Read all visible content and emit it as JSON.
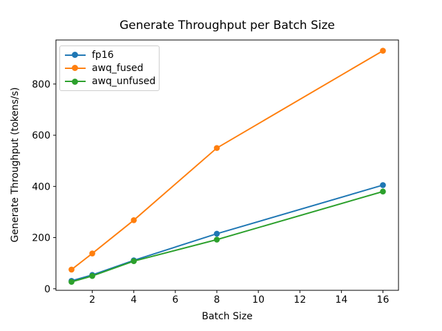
{
  "figure": {
    "background": "#ffffff",
    "text_color": "#000000",
    "spine_color": "#000000",
    "legend_border_color": "#cccccc"
  },
  "chart_data": {
    "type": "line",
    "title": "Generate Throughput per Batch Size",
    "xlabel": "Batch Size",
    "ylabel": "Generate Throughput (tokens/s)",
    "x": [
      1,
      2,
      4,
      8,
      16
    ],
    "series": [
      {
        "name": "fp16",
        "color": "#1f77b4",
        "marker": "circle",
        "values": [
          31,
          54,
          111,
          215,
          405
        ]
      },
      {
        "name": "awq_fused",
        "color": "#ff7f0e",
        "marker": "circle",
        "values": [
          75,
          138,
          268,
          550,
          930
        ]
      },
      {
        "name": "awq_unfused",
        "color": "#2ca02c",
        "marker": "circle",
        "values": [
          27,
          50,
          108,
          192,
          380
        ]
      }
    ],
    "xticks": [
      2,
      4,
      6,
      8,
      10,
      12,
      14,
      16
    ],
    "yticks": [
      0,
      200,
      400,
      600,
      800
    ],
    "xlim": [
      0.25,
      16.75
    ],
    "ylim": [
      -6,
      972
    ],
    "grid": false,
    "legend_position": "upper left"
  }
}
